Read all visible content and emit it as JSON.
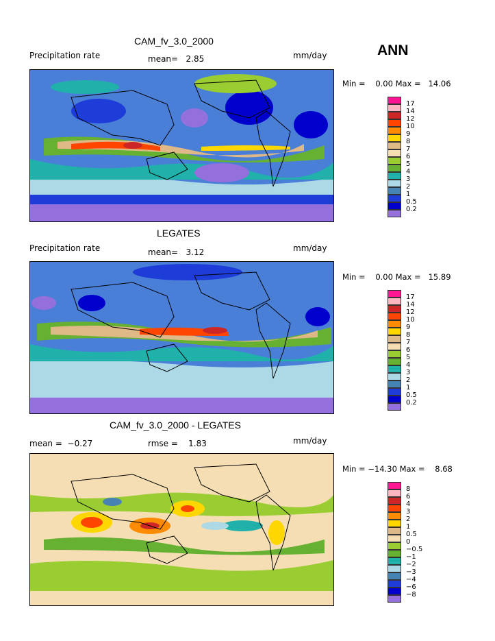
{
  "season_label": "ANN",
  "panels": [
    {
      "title": "CAM_fv_3.0_2000",
      "left_label": "Precipitation rate",
      "mid_label": "mean=   2.85",
      "units": "mm/day",
      "minmax": "Min =    0.00 Max =   14.06",
      "colorbar": {
        "labels": [
          "17",
          "14",
          "12",
          "10",
          "9",
          "8",
          "7",
          "6",
          "5",
          "4",
          "3",
          "2",
          "1",
          "0.5",
          "0.2"
        ],
        "colors": [
          "#ff1493",
          "#ffb6c1",
          "#cd2626",
          "#ff4500",
          "#ff8c00",
          "#ffd700",
          "#deb887",
          "#f5deb3",
          "#9acd32",
          "#66b032",
          "#20b2aa",
          "#add8e6",
          "#4682b4",
          "#1e3cd8",
          "#0000cd",
          "#9370db"
        ]
      }
    },
    {
      "title": "LEGATES",
      "left_label": "Precipitation rate",
      "mid_label": "mean=   3.12",
      "units": "mm/day",
      "minmax": "Min =    0.00 Max =   15.89",
      "colorbar": {
        "labels": [
          "17",
          "14",
          "12",
          "10",
          "9",
          "8",
          "7",
          "6",
          "5",
          "4",
          "3",
          "2",
          "1",
          "0.5",
          "0.2"
        ],
        "colors": [
          "#ff1493",
          "#ffb6c1",
          "#cd2626",
          "#ff4500",
          "#ff8c00",
          "#ffd700",
          "#deb887",
          "#f5deb3",
          "#9acd32",
          "#66b032",
          "#20b2aa",
          "#add8e6",
          "#4682b4",
          "#1e3cd8",
          "#0000cd",
          "#9370db"
        ]
      }
    },
    {
      "title": "CAM_fv_3.0_2000 - LEGATES",
      "left_label": "mean =  −0.27",
      "mid_label": "rmse =    1.83",
      "units": "mm/day",
      "minmax": "Min = −14.30 Max =    8.68",
      "colorbar": {
        "labels": [
          "8",
          "6",
          "4",
          "3",
          "2",
          "1",
          "0.5",
          "0",
          "−0.5",
          "−1",
          "−2",
          "−3",
          "−4",
          "−6",
          "−8"
        ],
        "colors": [
          "#ff1493",
          "#ffb6c1",
          "#cd2626",
          "#ff4500",
          "#ff8c00",
          "#ffd700",
          "#deb887",
          "#f5deb3",
          "#9acd32",
          "#66b032",
          "#20b2aa",
          "#add8e6",
          "#4682b4",
          "#1e3cd8",
          "#0000cd",
          "#9370db"
        ]
      }
    }
  ]
}
